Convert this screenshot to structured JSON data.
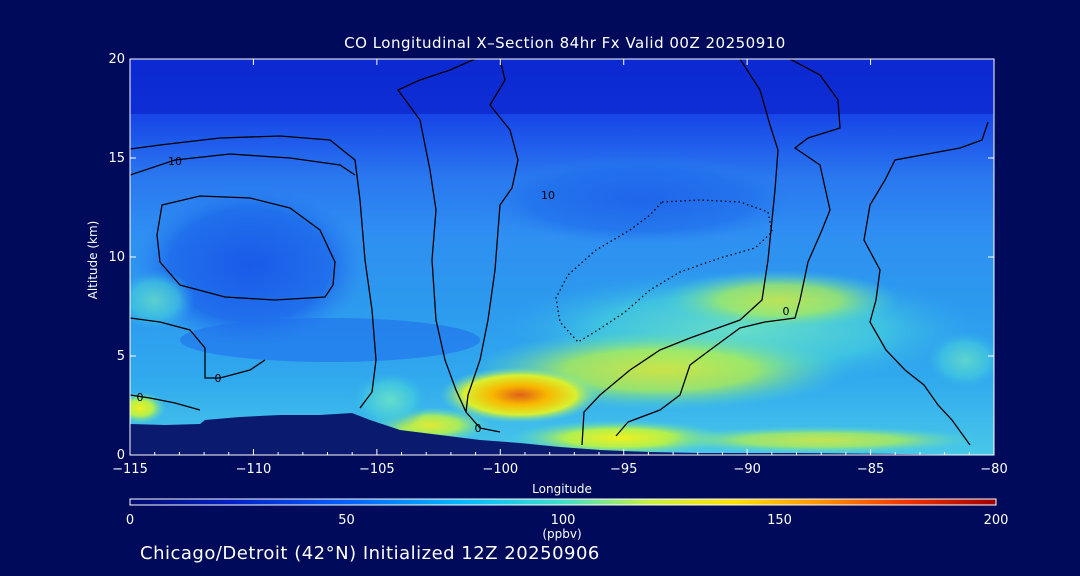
{
  "chart_data": {
    "type": "heatmap",
    "title": "CO Longitudinal X–Section 84hr  Fx Valid 00Z 20250910",
    "xlabel": "Longitude",
    "ylabel": "Altitude (km)",
    "xlim": [
      -115,
      -80
    ],
    "ylim": [
      0,
      20
    ],
    "x_ticks": [
      "−115",
      "−110",
      "−105",
      "−100",
      "−95",
      "−90",
      "−85",
      "−80"
    ],
    "y_ticks": [
      "0",
      "5",
      "10",
      "15",
      "20"
    ],
    "colorbar": {
      "label": "(ppbv)",
      "range": [
        0,
        200
      ],
      "ticks": [
        "0",
        "50",
        "100",
        "150",
        "200"
      ]
    },
    "contour_labels": [
      "10",
      "0",
      "0",
      "10",
      "0",
      "0"
    ],
    "footer": "Chicago/Detroit (42°N) Initialized 12Z 20250906",
    "colors": {
      "background": "#000a5a",
      "terrain": "#0a1a6e",
      "contour": "#000000"
    }
  }
}
